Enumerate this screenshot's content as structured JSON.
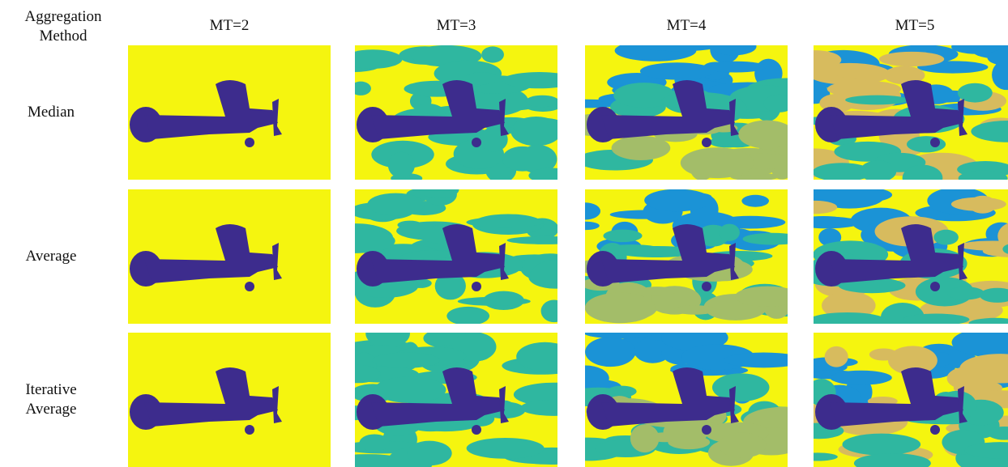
{
  "header": {
    "corner": "Aggregation Method",
    "columns": [
      "MT=2",
      "MT=3",
      "MT=4",
      "MT=5"
    ]
  },
  "rows": [
    {
      "label": "Median"
    },
    {
      "label": "Average"
    },
    {
      "label": "Iterative Average"
    }
  ]
}
